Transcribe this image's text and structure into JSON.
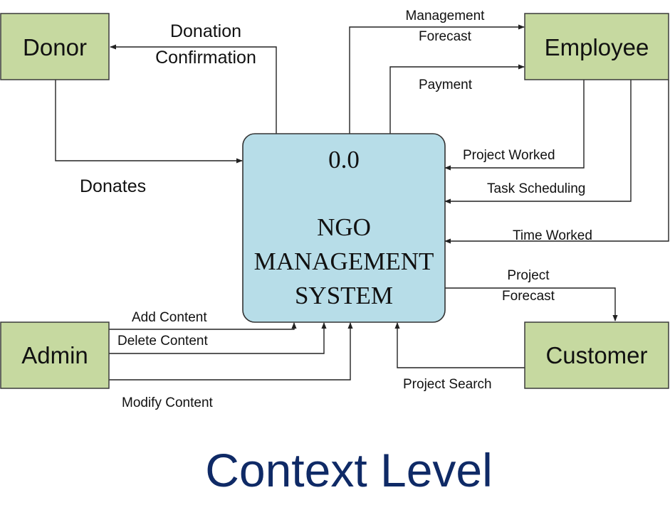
{
  "colors": {
    "entity_fill": "#c6d9a0",
    "entity_stroke": "#3a3a3a",
    "process_fill": "#b7dde8",
    "process_stroke": "#333333",
    "title": "#0f2a66",
    "line": "#222222"
  },
  "process": {
    "number": "0.0",
    "name_line1": "NGO",
    "name_line2": "MANAGEMENT",
    "name_line3": "SYSTEM"
  },
  "entities": {
    "donor": "Donor",
    "employee": "Employee",
    "admin": "Admin",
    "customer": "Customer"
  },
  "flows": {
    "donation_confirmation_1": "Donation",
    "donation_confirmation_2": "Confirmation",
    "donates": "Donates",
    "management_forecast_1": "Management",
    "management_forecast_2": "Forecast",
    "payment": "Payment",
    "project_worked": "Project Worked",
    "task_scheduling": "Task Scheduling",
    "time_worked": "Time Worked",
    "project_forecast_1": "Project",
    "project_forecast_2": "Forecast",
    "project_search": "Project Search",
    "add_content": "Add Content",
    "delete_content": "Delete Content",
    "modify_content": "Modify Content"
  },
  "title": "Context Level"
}
